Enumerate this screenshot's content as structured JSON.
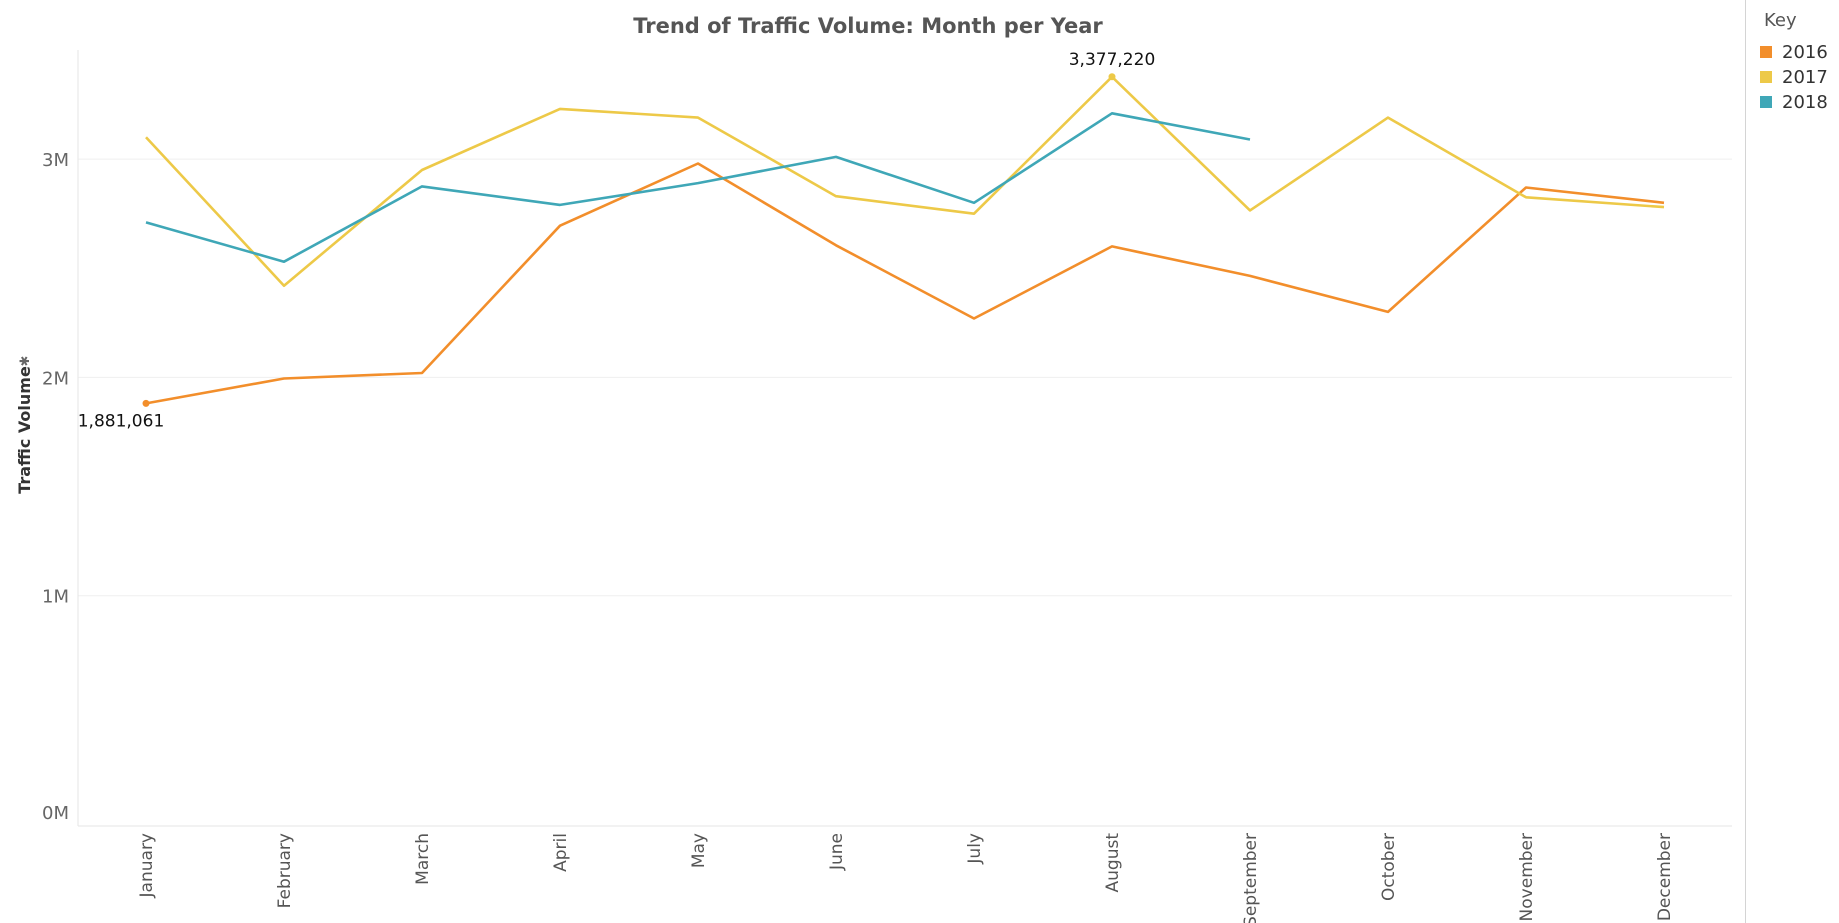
{
  "chart_data": {
    "type": "line",
    "title": "Trend of Traffic Volume: Month per Year",
    "ylabel": "Traffic Volume",
    "xlabel": "",
    "categories": [
      "January",
      "February",
      "March",
      "April",
      "May",
      "June",
      "July",
      "August",
      "September",
      "October",
      "November",
      "December"
    ],
    "ylim": [
      0,
      3550000
    ],
    "yticks": [
      {
        "value": 0,
        "label": "0M"
      },
      {
        "value": 1000000,
        "label": "1M"
      },
      {
        "value": 2000000,
        "label": "2M"
      },
      {
        "value": 3000000,
        "label": "3M"
      }
    ],
    "grid": true,
    "legend_position": "right",
    "series": [
      {
        "name": "2016",
        "color": "#f28e2b",
        "values": [
          1881061,
          1995000,
          2020000,
          2695000,
          2980000,
          2605000,
          2270000,
          2600000,
          2465000,
          2300000,
          2870000,
          2800000
        ]
      },
      {
        "name": "2017",
        "color": "#edc948",
        "values": [
          3100000,
          2420000,
          2950000,
          3230000,
          3190000,
          2830000,
          2750000,
          3377220,
          2765000,
          3190000,
          2825000,
          2780000
        ]
      },
      {
        "name": "2018",
        "color": "#3fa7b7",
        "values": [
          2710000,
          2530000,
          2875000,
          2790000,
          2890000,
          3010000,
          2800000,
          3210000,
          3090000,
          null,
          null,
          null
        ]
      }
    ],
    "annotations": [
      {
        "series": "2016",
        "category": "January",
        "value": 1881061,
        "label": "1,881,061"
      },
      {
        "series": "2017",
        "category": "August",
        "value": 3377220,
        "label": "3,377,220"
      }
    ]
  },
  "legend": {
    "title": "Key",
    "items": [
      {
        "label": "2016",
        "color": "#f28e2b"
      },
      {
        "label": "2017",
        "color": "#edc948"
      },
      {
        "label": "2018",
        "color": "#3fa7b7"
      }
    ]
  },
  "icons": {
    "axis_pin": "pin-icon"
  }
}
